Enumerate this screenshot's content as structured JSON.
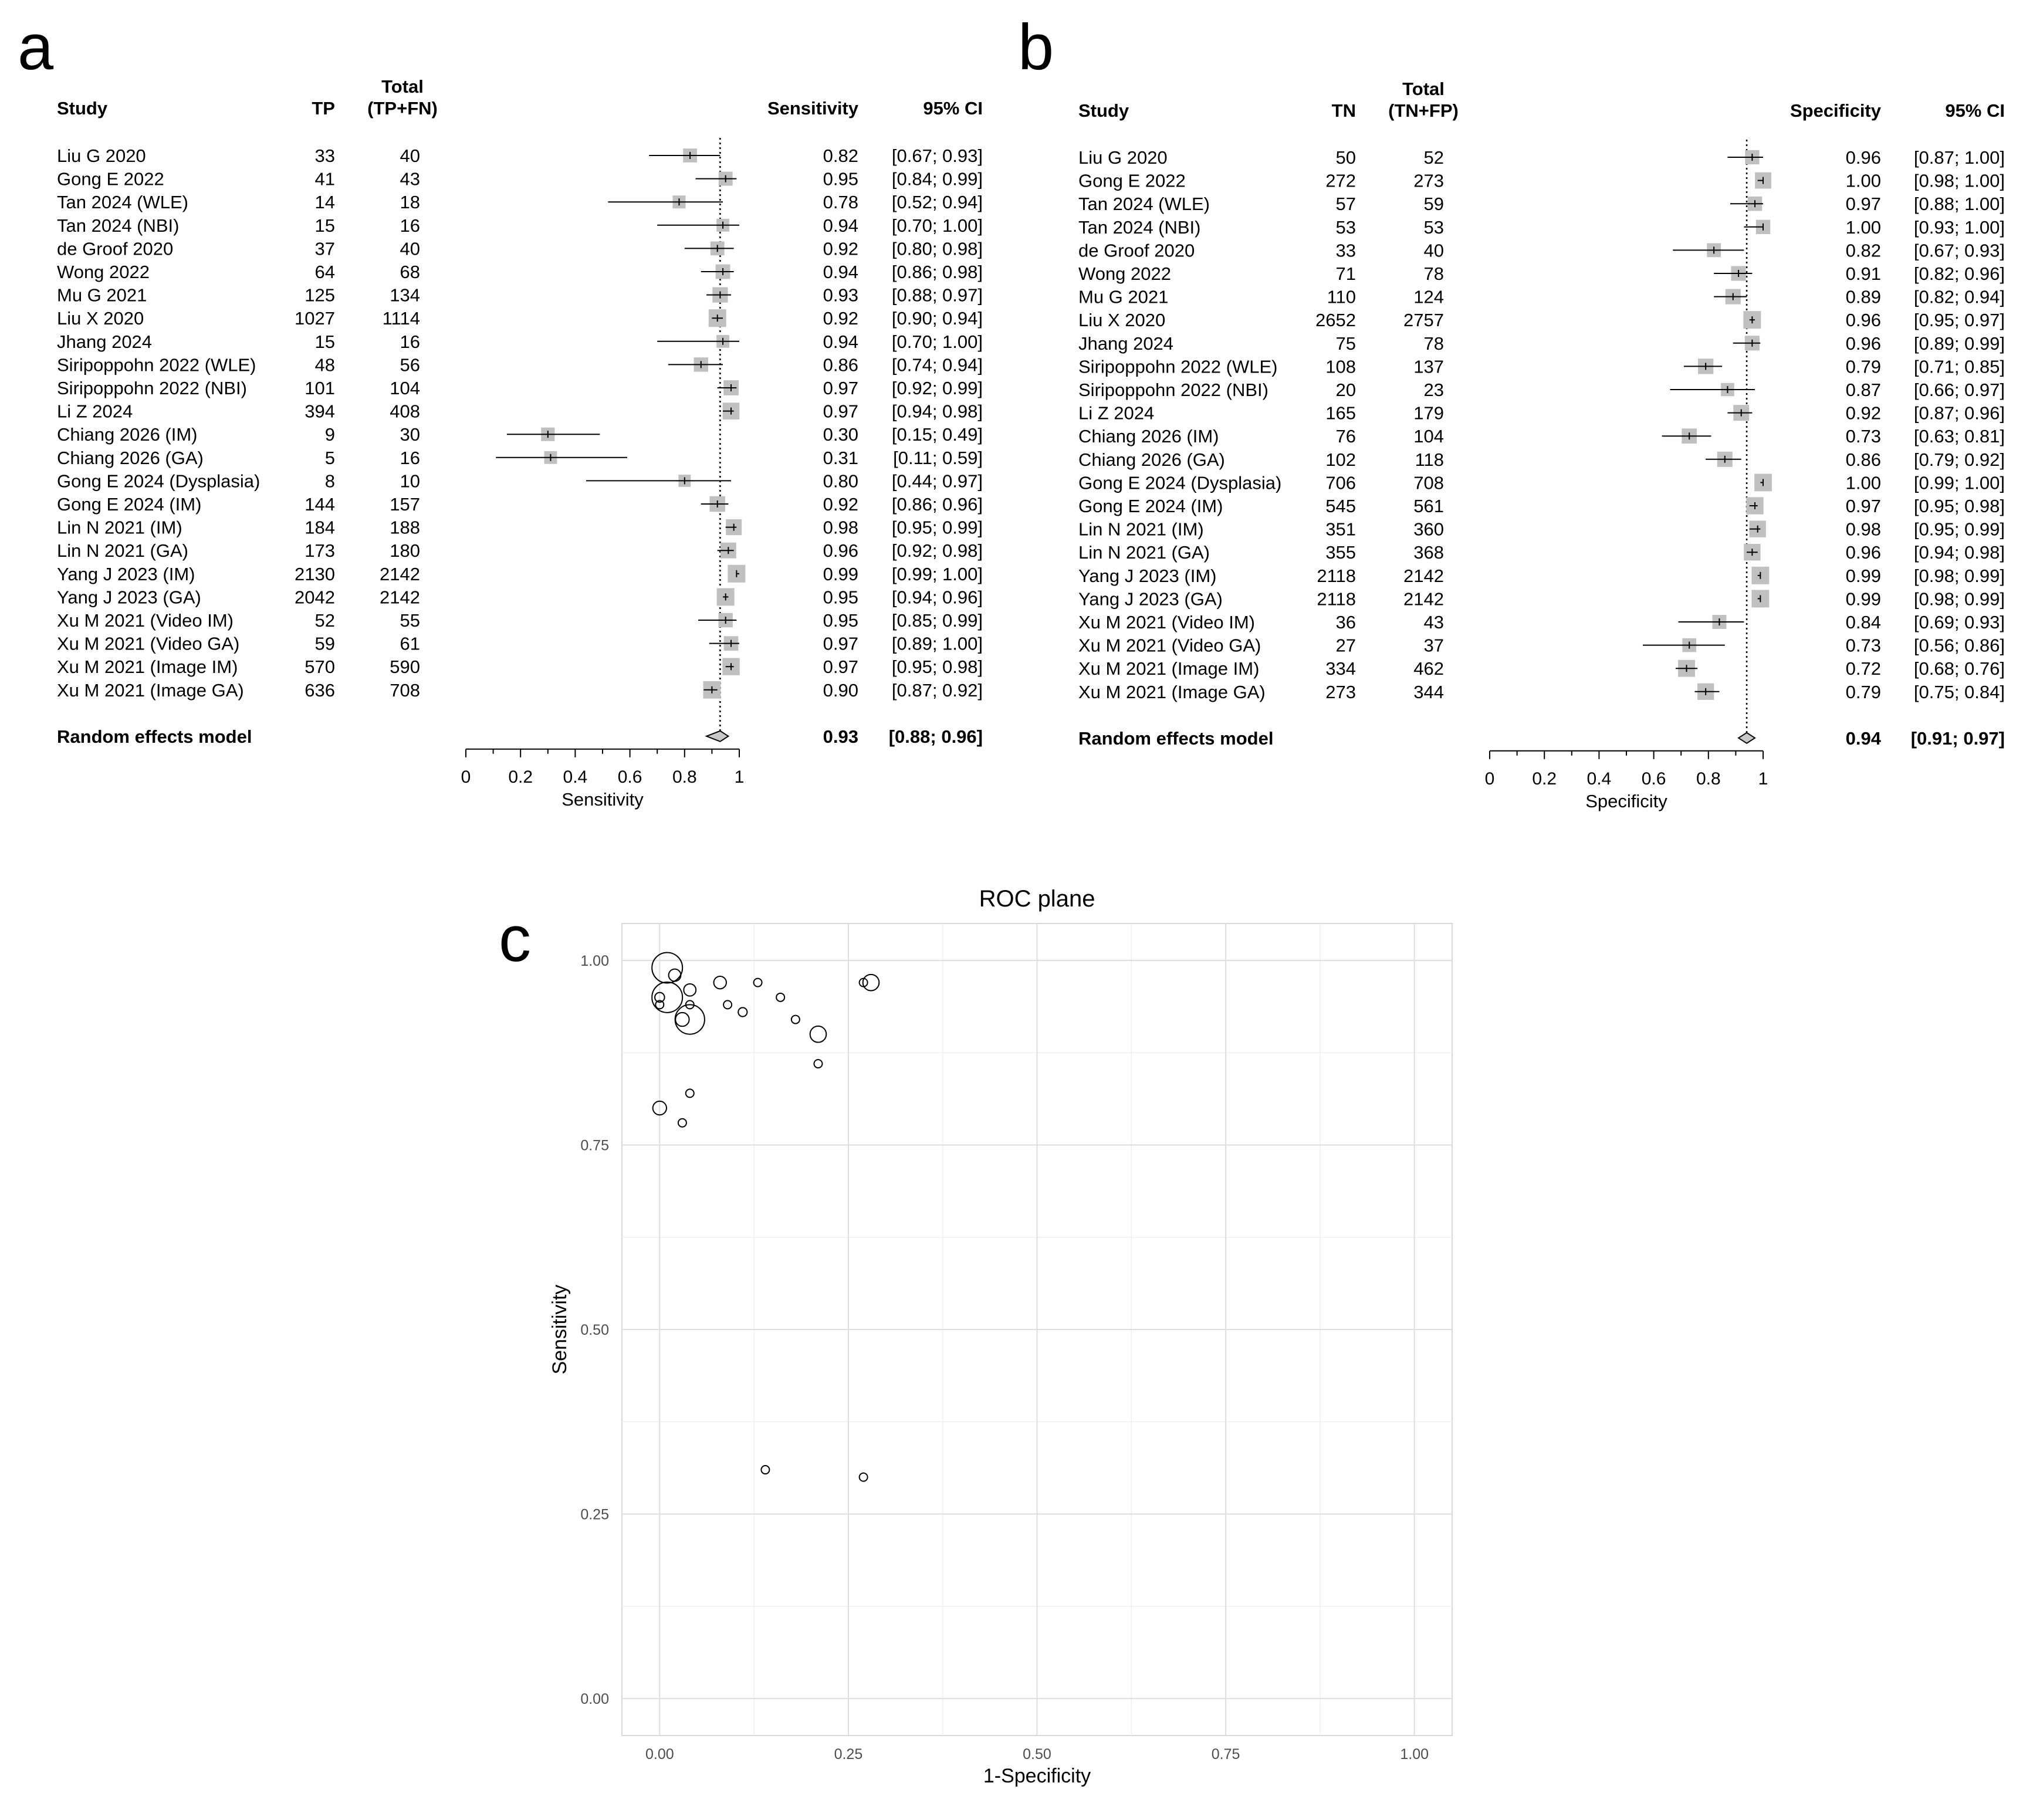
{
  "panels": {
    "a": {
      "letter": "a",
      "headers": {
        "study": "Study",
        "count": "TP",
        "total_line1": "Total",
        "total_line2": "(TP+FN)",
        "estimate": "Sensitivity",
        "ci": "95% CI"
      },
      "pooled": {
        "label": "Random effects model",
        "estimate": 0.93,
        "lower": 0.88,
        "upper": 0.96,
        "estimate_text": "0.93",
        "ci_text": "[0.88; 0.96]"
      },
      "axis": {
        "label": "Sensitivity",
        "ticks": [
          "0",
          "0.2",
          "0.4",
          "0.6",
          "0.8",
          "1"
        ]
      }
    },
    "b": {
      "letter": "b",
      "headers": {
        "study": "Study",
        "count": "TN",
        "total_line1": "Total",
        "total_line2": "(TN+FP)",
        "estimate": "Specificity",
        "ci": "95% CI"
      },
      "pooled": {
        "label": "Random effects model",
        "estimate": 0.94,
        "lower": 0.91,
        "upper": 0.97,
        "estimate_text": "0.94",
        "ci_text": "[0.91; 0.97]"
      },
      "axis": {
        "label": "Specificity",
        "ticks": [
          "0",
          "0.2",
          "0.4",
          "0.6",
          "0.8",
          "1"
        ]
      }
    },
    "c": {
      "letter": "c"
    }
  },
  "chart_data": [
    {
      "type": "table",
      "panel": "a",
      "xlim": [
        0,
        1
      ],
      "reference_line": 0.93,
      "studies": [
        {
          "study": "Liu G 2020",
          "tp": "33",
          "total": "40",
          "estimate": 0.82,
          "lower": 0.67,
          "upper": 0.93,
          "estimate_text": "0.82",
          "ci_text": "[0.67; 0.93]"
        },
        {
          "study": "Gong E 2022",
          "tp": "41",
          "total": "43",
          "estimate": 0.95,
          "lower": 0.84,
          "upper": 0.99,
          "estimate_text": "0.95",
          "ci_text": "[0.84; 0.99]"
        },
        {
          "study": "Tan 2024 (WLE)",
          "tp": "14",
          "total": "18",
          "estimate": 0.78,
          "lower": 0.52,
          "upper": 0.94,
          "estimate_text": "0.78",
          "ci_text": "[0.52; 0.94]"
        },
        {
          "study": "Tan 2024 (NBI)",
          "tp": "15",
          "total": "16",
          "estimate": 0.94,
          "lower": 0.7,
          "upper": 1.0,
          "estimate_text": "0.94",
          "ci_text": "[0.70; 1.00]"
        },
        {
          "study": "de Groof 2020",
          "tp": "37",
          "total": "40",
          "estimate": 0.92,
          "lower": 0.8,
          "upper": 0.98,
          "estimate_text": "0.92",
          "ci_text": "[0.80; 0.98]"
        },
        {
          "study": "Wong 2022",
          "tp": "64",
          "total": "68",
          "estimate": 0.94,
          "lower": 0.86,
          "upper": 0.98,
          "estimate_text": "0.94",
          "ci_text": "[0.86; 0.98]"
        },
        {
          "study": "Mu G 2021",
          "tp": "125",
          "total": "134",
          "estimate": 0.93,
          "lower": 0.88,
          "upper": 0.97,
          "estimate_text": "0.93",
          "ci_text": "[0.88; 0.97]"
        },
        {
          "study": "Liu X 2020",
          "tp": "1027",
          "total": "1114",
          "estimate": 0.92,
          "lower": 0.9,
          "upper": 0.94,
          "estimate_text": "0.92",
          "ci_text": "[0.90; 0.94]"
        },
        {
          "study": "Jhang 2024",
          "tp": "15",
          "total": "16",
          "estimate": 0.94,
          "lower": 0.7,
          "upper": 1.0,
          "estimate_text": "0.94",
          "ci_text": "[0.70; 1.00]"
        },
        {
          "study": "Siripoppohn 2022 (WLE)",
          "tp": "48",
          "total": "56",
          "estimate": 0.86,
          "lower": 0.74,
          "upper": 0.94,
          "estimate_text": "0.86",
          "ci_text": "[0.74; 0.94]"
        },
        {
          "study": "Siripoppohn 2022 (NBI)",
          "tp": "101",
          "total": "104",
          "estimate": 0.97,
          "lower": 0.92,
          "upper": 0.99,
          "estimate_text": "0.97",
          "ci_text": "[0.92; 0.99]"
        },
        {
          "study": "Li Z 2024",
          "tp": "394",
          "total": "408",
          "estimate": 0.97,
          "lower": 0.94,
          "upper": 0.98,
          "estimate_text": "0.97",
          "ci_text": "[0.94; 0.98]"
        },
        {
          "study": "Chiang 2026 (IM)",
          "tp": "9",
          "total": "30",
          "estimate": 0.3,
          "lower": 0.15,
          "upper": 0.49,
          "estimate_text": "0.30",
          "ci_text": "[0.15; 0.49]"
        },
        {
          "study": "Chiang 2026 (GA)",
          "tp": "5",
          "total": "16",
          "estimate": 0.31,
          "lower": 0.11,
          "upper": 0.59,
          "estimate_text": "0.31",
          "ci_text": "[0.11; 0.59]"
        },
        {
          "study": "Gong E 2024 (Dysplasia)",
          "tp": "8",
          "total": "10",
          "estimate": 0.8,
          "lower": 0.44,
          "upper": 0.97,
          "estimate_text": "0.80",
          "ci_text": "[0.44; 0.97]"
        },
        {
          "study": "Gong E 2024 (IM)",
          "tp": "144",
          "total": "157",
          "estimate": 0.92,
          "lower": 0.86,
          "upper": 0.96,
          "estimate_text": "0.92",
          "ci_text": "[0.86; 0.96]"
        },
        {
          "study": "Lin N 2021 (IM)",
          "tp": "184",
          "total": "188",
          "estimate": 0.98,
          "lower": 0.95,
          "upper": 0.99,
          "estimate_text": "0.98",
          "ci_text": "[0.95; 0.99]"
        },
        {
          "study": "Lin N 2021 (GA)",
          "tp": "173",
          "total": "180",
          "estimate": 0.96,
          "lower": 0.92,
          "upper": 0.98,
          "estimate_text": "0.96",
          "ci_text": "[0.92; 0.98]"
        },
        {
          "study": "Yang J 2023 (IM)",
          "tp": "2130",
          "total": "2142",
          "estimate": 0.99,
          "lower": 0.99,
          "upper": 1.0,
          "estimate_text": "0.99",
          "ci_text": "[0.99; 1.00]"
        },
        {
          "study": "Yang J 2023 (GA)",
          "tp": "2042",
          "total": "2142",
          "estimate": 0.95,
          "lower": 0.94,
          "upper": 0.96,
          "estimate_text": "0.95",
          "ci_text": "[0.94; 0.96]"
        },
        {
          "study": "Xu M 2021 (Video IM)",
          "tp": "52",
          "total": "55",
          "estimate": 0.95,
          "lower": 0.85,
          "upper": 0.99,
          "estimate_text": "0.95",
          "ci_text": "[0.85; 0.99]"
        },
        {
          "study": "Xu M 2021 (Video GA)",
          "tp": "59",
          "total": "61",
          "estimate": 0.97,
          "lower": 0.89,
          "upper": 1.0,
          "estimate_text": "0.97",
          "ci_text": "[0.89; 1.00]"
        },
        {
          "study": "Xu M 2021 (Image IM)",
          "tp": "570",
          "total": "590",
          "estimate": 0.97,
          "lower": 0.95,
          "upper": 0.98,
          "estimate_text": "0.97",
          "ci_text": "[0.95; 0.98]"
        },
        {
          "study": "Xu M 2021 (Image GA)",
          "tp": "636",
          "total": "708",
          "estimate": 0.9,
          "lower": 0.87,
          "upper": 0.92,
          "estimate_text": "0.90",
          "ci_text": "[0.87; 0.92]"
        }
      ]
    },
    {
      "type": "table",
      "panel": "b",
      "xlim": [
        0,
        1
      ],
      "reference_line": 0.94,
      "studies": [
        {
          "study": "Liu G 2020",
          "tn": "50",
          "total": "52",
          "estimate": 0.96,
          "lower": 0.87,
          "upper": 1.0,
          "estimate_text": "0.96",
          "ci_text": "[0.87; 1.00]"
        },
        {
          "study": "Gong E 2022",
          "tn": "272",
          "total": "273",
          "estimate": 1.0,
          "lower": 0.98,
          "upper": 1.0,
          "estimate_text": "1.00",
          "ci_text": "[0.98; 1.00]"
        },
        {
          "study": "Tan 2024 (WLE)",
          "tn": "57",
          "total": "59",
          "estimate": 0.97,
          "lower": 0.88,
          "upper": 1.0,
          "estimate_text": "0.97",
          "ci_text": "[0.88; 1.00]"
        },
        {
          "study": "Tan 2024 (NBI)",
          "tn": "53",
          "total": "53",
          "estimate": 1.0,
          "lower": 0.93,
          "upper": 1.0,
          "estimate_text": "1.00",
          "ci_text": "[0.93; 1.00]"
        },
        {
          "study": "de Groof 2020",
          "tn": "33",
          "total": "40",
          "estimate": 0.82,
          "lower": 0.67,
          "upper": 0.93,
          "estimate_text": "0.82",
          "ci_text": "[0.67; 0.93]"
        },
        {
          "study": "Wong 2022",
          "tn": "71",
          "total": "78",
          "estimate": 0.91,
          "lower": 0.82,
          "upper": 0.96,
          "estimate_text": "0.91",
          "ci_text": "[0.82; 0.96]"
        },
        {
          "study": "Mu G 2021",
          "tn": "110",
          "total": "124",
          "estimate": 0.89,
          "lower": 0.82,
          "upper": 0.94,
          "estimate_text": "0.89",
          "ci_text": "[0.82; 0.94]"
        },
        {
          "study": "Liu X 2020",
          "tn": "2652",
          "total": "2757",
          "estimate": 0.96,
          "lower": 0.95,
          "upper": 0.97,
          "estimate_text": "0.96",
          "ci_text": "[0.95; 0.97]"
        },
        {
          "study": "Jhang 2024",
          "tn": "75",
          "total": "78",
          "estimate": 0.96,
          "lower": 0.89,
          "upper": 0.99,
          "estimate_text": "0.96",
          "ci_text": "[0.89; 0.99]"
        },
        {
          "study": "Siripoppohn 2022 (WLE)",
          "tn": "108",
          "total": "137",
          "estimate": 0.79,
          "lower": 0.71,
          "upper": 0.85,
          "estimate_text": "0.79",
          "ci_text": "[0.71; 0.85]"
        },
        {
          "study": "Siripoppohn 2022 (NBI)",
          "tn": "20",
          "total": "23",
          "estimate": 0.87,
          "lower": 0.66,
          "upper": 0.97,
          "estimate_text": "0.87",
          "ci_text": "[0.66; 0.97]"
        },
        {
          "study": "Li Z 2024",
          "tn": "165",
          "total": "179",
          "estimate": 0.92,
          "lower": 0.87,
          "upper": 0.96,
          "estimate_text": "0.92",
          "ci_text": "[0.87; 0.96]"
        },
        {
          "study": "Chiang 2026 (IM)",
          "tn": "76",
          "total": "104",
          "estimate": 0.73,
          "lower": 0.63,
          "upper": 0.81,
          "estimate_text": "0.73",
          "ci_text": "[0.63; 0.81]"
        },
        {
          "study": "Chiang 2026 (GA)",
          "tn": "102",
          "total": "118",
          "estimate": 0.86,
          "lower": 0.79,
          "upper": 0.92,
          "estimate_text": "0.86",
          "ci_text": "[0.79; 0.92]"
        },
        {
          "study": "Gong E 2024 (Dysplasia)",
          "tn": "706",
          "total": "708",
          "estimate": 1.0,
          "lower": 0.99,
          "upper": 1.0,
          "estimate_text": "1.00",
          "ci_text": "[0.99; 1.00]"
        },
        {
          "study": "Gong E 2024 (IM)",
          "tn": "545",
          "total": "561",
          "estimate": 0.97,
          "lower": 0.95,
          "upper": 0.98,
          "estimate_text": "0.97",
          "ci_text": "[0.95; 0.98]"
        },
        {
          "study": "Lin N 2021 (IM)",
          "tn": "351",
          "total": "360",
          "estimate": 0.98,
          "lower": 0.95,
          "upper": 0.99,
          "estimate_text": "0.98",
          "ci_text": "[0.95; 0.99]"
        },
        {
          "study": "Lin N 2021 (GA)",
          "tn": "355",
          "total": "368",
          "estimate": 0.96,
          "lower": 0.94,
          "upper": 0.98,
          "estimate_text": "0.96",
          "ci_text": "[0.94; 0.98]"
        },
        {
          "study": "Yang J 2023 (IM)",
          "tn": "2118",
          "total": "2142",
          "estimate": 0.99,
          "lower": 0.98,
          "upper": 0.99,
          "estimate_text": "0.99",
          "ci_text": "[0.98; 0.99]"
        },
        {
          "study": "Yang J 2023 (GA)",
          "tn": "2118",
          "total": "2142",
          "estimate": 0.99,
          "lower": 0.98,
          "upper": 0.99,
          "estimate_text": "0.99",
          "ci_text": "[0.98; 0.99]"
        },
        {
          "study": "Xu M 2021 (Video IM)",
          "tn": "36",
          "total": "43",
          "estimate": 0.84,
          "lower": 0.69,
          "upper": 0.93,
          "estimate_text": "0.84",
          "ci_text": "[0.69; 0.93]"
        },
        {
          "study": "Xu M 2021 (Video GA)",
          "tn": "27",
          "total": "37",
          "estimate": 0.73,
          "lower": 0.56,
          "upper": 0.86,
          "estimate_text": "0.73",
          "ci_text": "[0.56; 0.86]"
        },
        {
          "study": "Xu M 2021 (Image IM)",
          "tn": "334",
          "total": "462",
          "estimate": 0.72,
          "lower": 0.68,
          "upper": 0.76,
          "estimate_text": "0.72",
          "ci_text": "[0.68; 0.76]"
        },
        {
          "study": "Xu M 2021 (Image GA)",
          "tn": "273",
          "total": "344",
          "estimate": 0.79,
          "lower": 0.75,
          "upper": 0.84,
          "estimate_text": "0.79",
          "ci_text": "[0.75; 0.84]"
        }
      ]
    },
    {
      "type": "scatter",
      "panel": "c",
      "title": "ROC plane",
      "xlabel": "1-Specificity",
      "ylabel": "Sensitivity",
      "xlim": [
        -0.05,
        1.05
      ],
      "ylim": [
        -0.05,
        1.05
      ],
      "grid": true,
      "x_ticks": [
        "0.00",
        "0.25",
        "0.50",
        "0.75",
        "1.00"
      ],
      "y_ticks": [
        "0.00",
        "0.25",
        "0.50",
        "0.75",
        "1.00"
      ],
      "points": [
        {
          "x": 0.04,
          "y": 0.82,
          "n": 92
        },
        {
          "x": 0.0,
          "y": 0.95,
          "n": 316
        },
        {
          "x": 0.03,
          "y": 0.78,
          "n": 77
        },
        {
          "x": 0.0,
          "y": 0.94,
          "n": 69
        },
        {
          "x": 0.18,
          "y": 0.92,
          "n": 80
        },
        {
          "x": 0.09,
          "y": 0.94,
          "n": 146
        },
        {
          "x": 0.11,
          "y": 0.93,
          "n": 258
        },
        {
          "x": 0.04,
          "y": 0.92,
          "n": 3871
        },
        {
          "x": 0.04,
          "y": 0.94,
          "n": 94
        },
        {
          "x": 0.21,
          "y": 0.86,
          "n": 193
        },
        {
          "x": 0.13,
          "y": 0.97,
          "n": 127
        },
        {
          "x": 0.08,
          "y": 0.97,
          "n": 587
        },
        {
          "x": 0.27,
          "y": 0.3,
          "n": 134
        },
        {
          "x": 0.14,
          "y": 0.31,
          "n": 134
        },
        {
          "x": 0.0,
          "y": 0.8,
          "n": 718
        },
        {
          "x": 0.03,
          "y": 0.92,
          "n": 718
        },
        {
          "x": 0.02,
          "y": 0.98,
          "n": 548
        },
        {
          "x": 0.04,
          "y": 0.96,
          "n": 548
        },
        {
          "x": 0.01,
          "y": 0.99,
          "n": 4284
        },
        {
          "x": 0.01,
          "y": 0.95,
          "n": 4284
        },
        {
          "x": 0.16,
          "y": 0.95,
          "n": 98
        },
        {
          "x": 0.27,
          "y": 0.97,
          "n": 98
        },
        {
          "x": 0.28,
          "y": 0.97,
          "n": 1052
        },
        {
          "x": 0.21,
          "y": 0.9,
          "n": 1052
        }
      ]
    }
  ]
}
